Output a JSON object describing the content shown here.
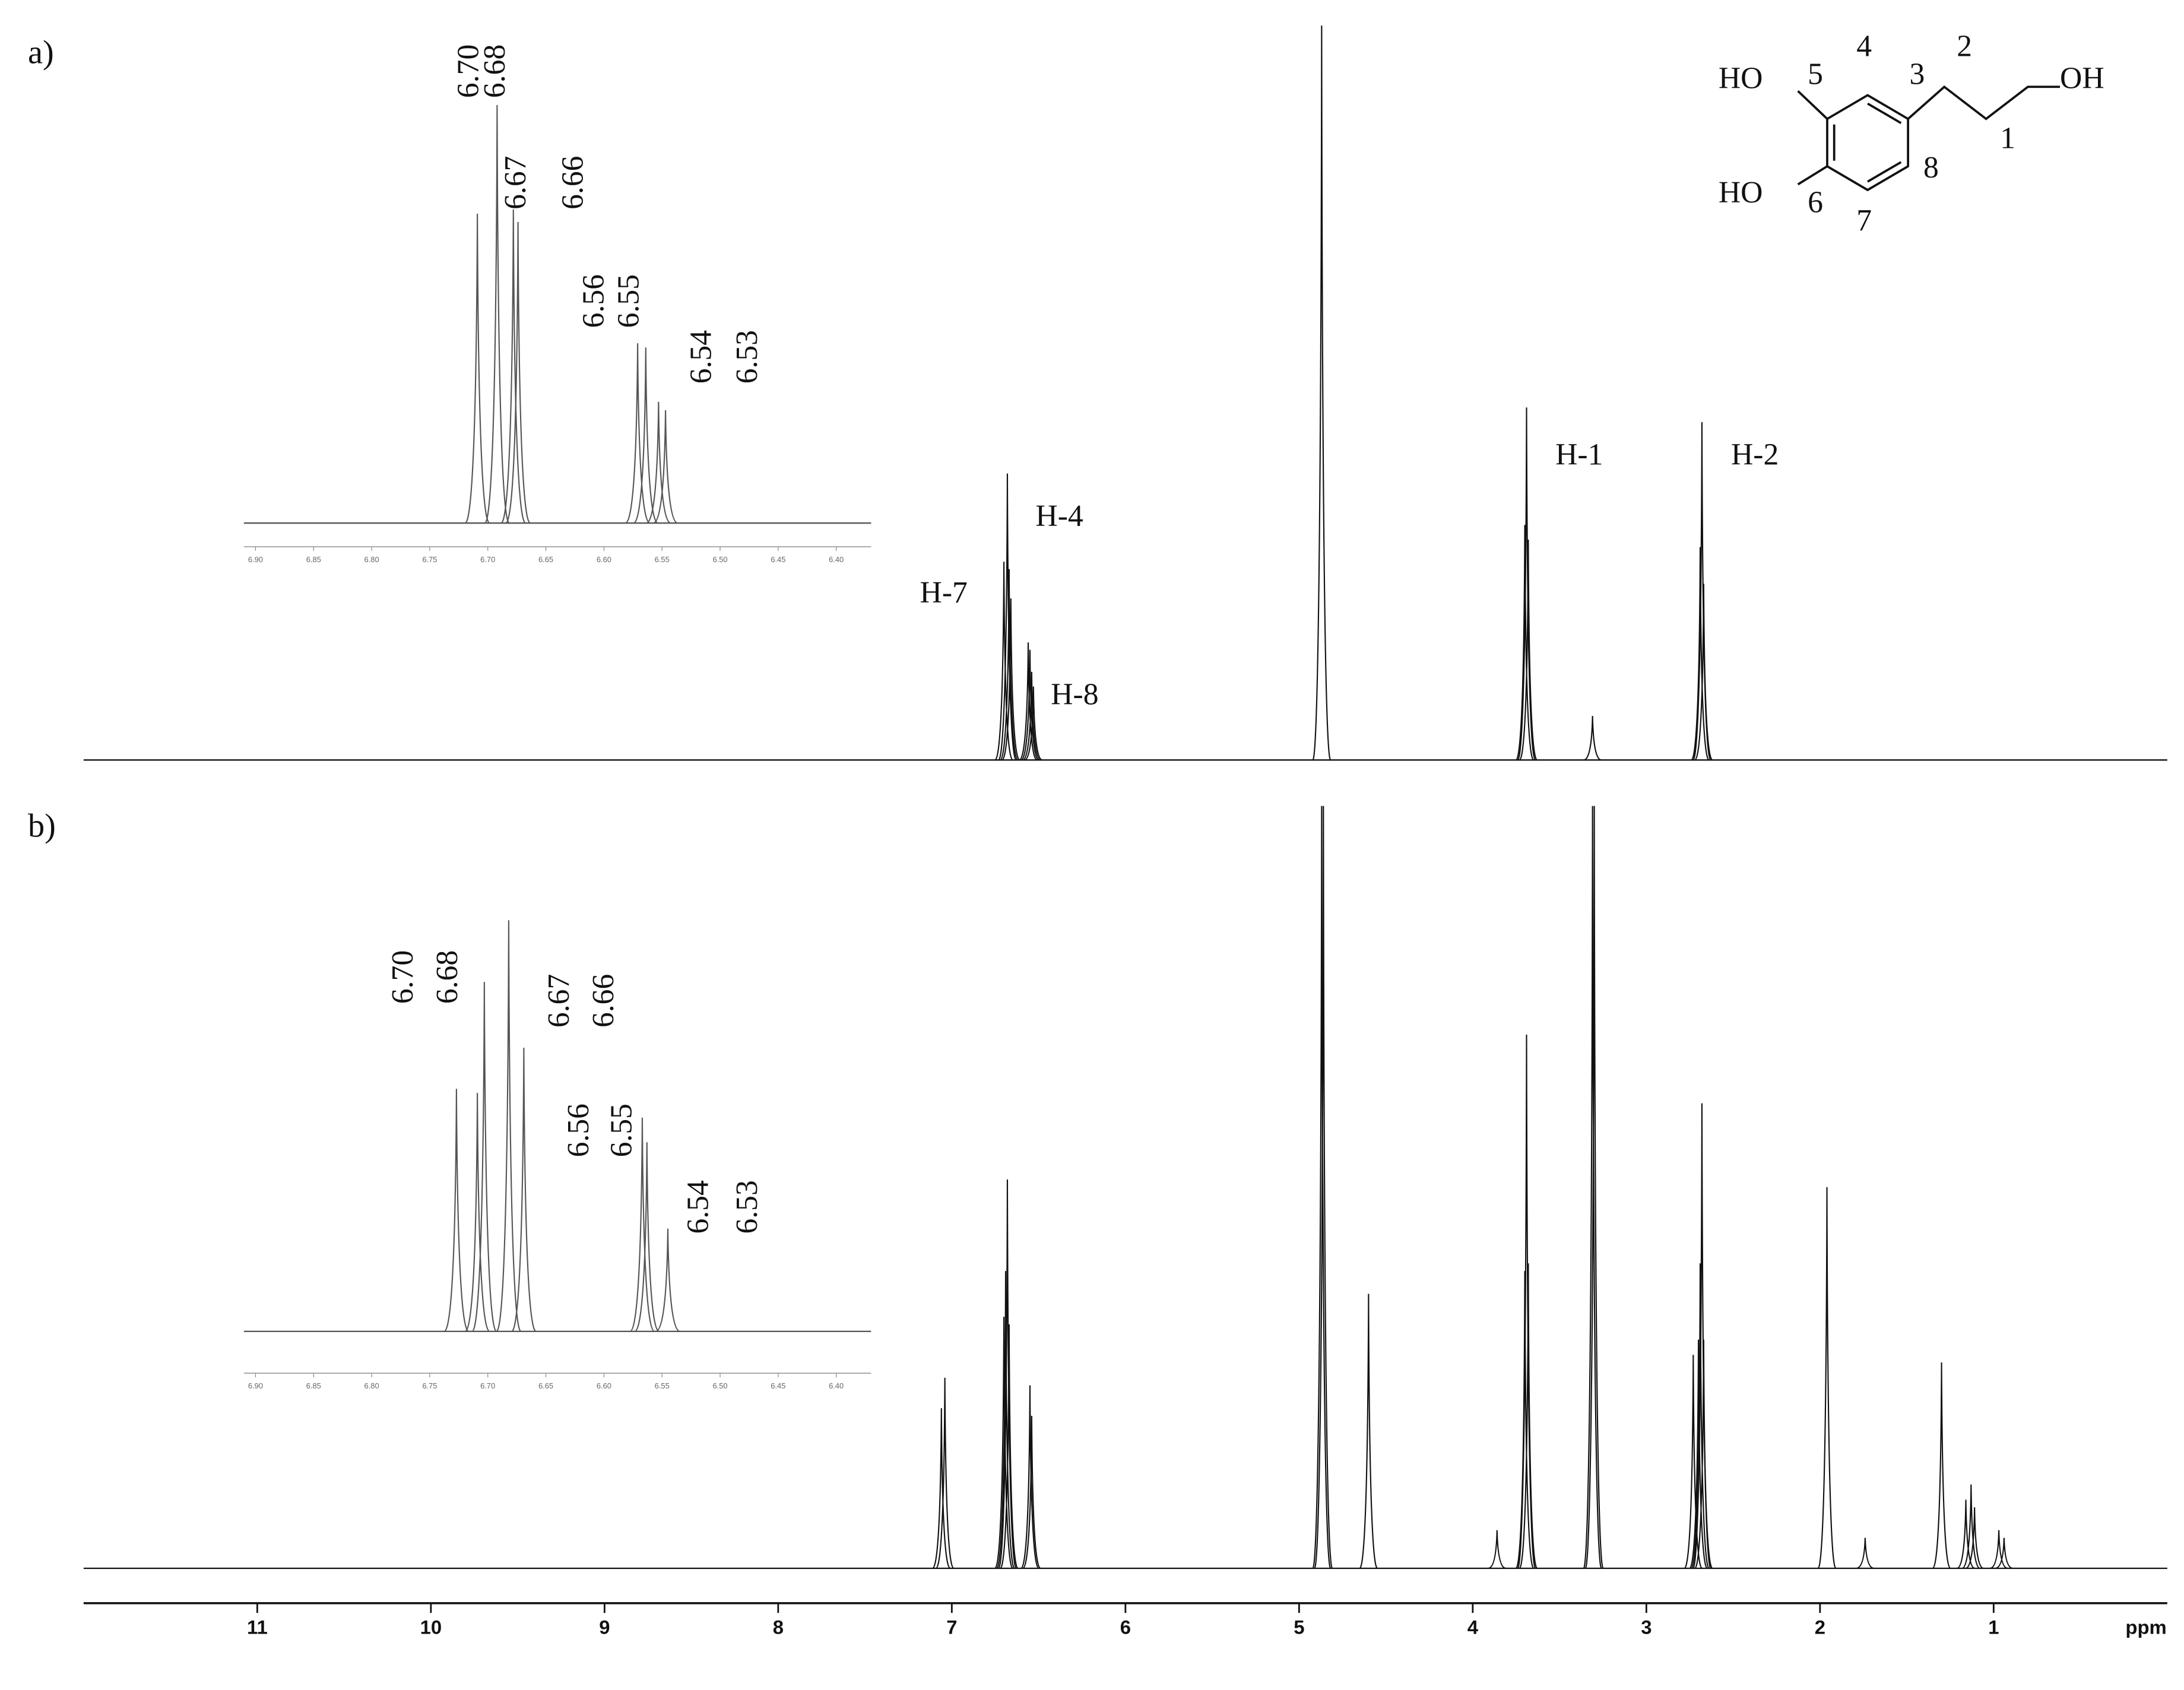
{
  "chart_data": [
    {
      "type": "spectrum",
      "title": "a)",
      "annotations": [
        "H-7",
        "H-4",
        "H-8",
        "H-1",
        "H-2"
      ],
      "x": [
        6.7,
        6.68,
        6.67,
        6.66,
        6.56,
        6.55,
        6.54,
        6.53,
        4.87,
        3.7,
        3.69,
        3.68,
        3.31,
        2.69,
        2.68,
        2.67
      ],
      "values": [
        27,
        39,
        26,
        22,
        16,
        15,
        12,
        10,
        100,
        32,
        48,
        30,
        6,
        29,
        46,
        24
      ],
      "xlim": [
        12,
        0
      ],
      "ylim": [
        0,
        100
      ],
      "color": "#111111"
    },
    {
      "type": "spectrum",
      "annotations": [
        "6.70",
        "6.68",
        "6.67",
        "6.66",
        "6.56",
        "6.55",
        "6.54",
        "6.53"
      ],
      "x": [
        6.709,
        6.692,
        6.678,
        6.674,
        6.571,
        6.564,
        6.553,
        6.547
      ],
      "values": [
        74,
        100,
        75,
        72,
        43,
        42,
        29,
        27
      ],
      "xlim": [
        6.91,
        6.37
      ],
      "ylim": [
        0,
        100
      ],
      "color": "#555555",
      "xticks": [
        {
          "value": 6.9,
          "label": "6.90"
        },
        6.85,
        {
          "value": 6.8,
          "label": "6.80"
        },
        6.75,
        {
          "value": 6.7,
          "label": "6.70"
        },
        6.65,
        {
          "value": 6.6,
          "label": "6.60"
        },
        6.55,
        {
          "value": 6.5,
          "label": "6.50"
        },
        6.45,
        {
          "value": 6.4,
          "label": "6.40"
        }
      ]
    },
    {
      "type": "spectrum",
      "title": "b)",
      "xlabel": "ppm",
      "x": [
        7.06,
        7.04,
        6.7,
        6.69,
        6.68,
        6.67,
        6.55,
        6.54,
        4.87,
        4.86,
        4.6,
        3.86,
        3.7,
        3.69,
        3.68,
        3.31,
        3.3,
        2.73,
        2.7,
        2.69,
        2.68,
        2.67,
        1.96,
        1.74,
        1.3,
        1.16,
        1.13,
        1.11,
        0.97,
        0.94
      ],
      "values": [
        21,
        25,
        33,
        39,
        51,
        32,
        24,
        20,
        100,
        100,
        36,
        5,
        39,
        70,
        40,
        100,
        100,
        28,
        30,
        40,
        61,
        30,
        50,
        4,
        27,
        9,
        11,
        8,
        5,
        4
      ],
      "xlim": [
        12,
        0
      ],
      "ylim": [
        0,
        100
      ],
      "color": "#111111",
      "xticks": [
        11,
        10,
        9,
        8,
        7,
        6,
        5,
        4,
        3,
        2,
        1
      ]
    },
    {
      "type": "spectrum",
      "annotations": [
        "6.70",
        "6.68",
        "6.67",
        "6.66",
        "6.56",
        "6.55",
        "6.54",
        "6.53"
      ],
      "x": [
        6.727,
        6.709,
        6.703,
        6.682,
        6.669,
        6.567,
        6.563,
        6.545
      ],
      "values": [
        59,
        58,
        85,
        100,
        69,
        52,
        46,
        25
      ],
      "xlim": [
        6.91,
        6.37
      ],
      "ylim": [
        0,
        100
      ],
      "color": "#555555",
      "xticks": [
        {
          "value": 6.9,
          "label": "6.90"
        },
        6.85,
        {
          "value": 6.8,
          "label": "6.80"
        },
        6.75,
        {
          "value": 6.7,
          "label": "6.70"
        },
        6.65,
        {
          "value": 6.6,
          "label": "6.60"
        },
        6.55,
        {
          "value": 6.5,
          "label": "6.50"
        },
        6.45,
        {
          "value": 6.4,
          "label": "6.40"
        }
      ]
    }
  ],
  "structure": {
    "groups": [
      "HO",
      "HO",
      "OH"
    ],
    "positions": [
      "1",
      "2",
      "3",
      "4",
      "5",
      "6",
      "7",
      "8"
    ]
  }
}
